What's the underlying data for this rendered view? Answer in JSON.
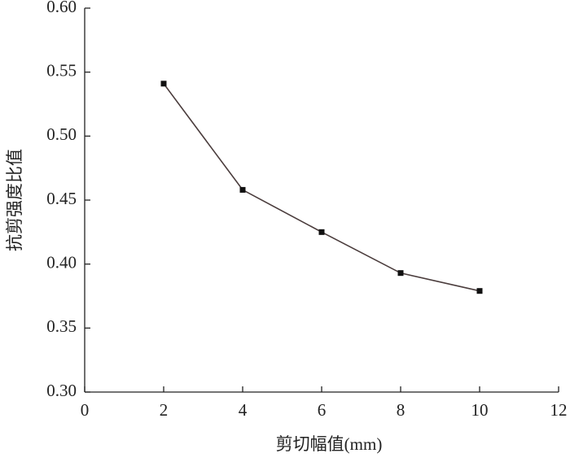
{
  "chart_data": {
    "type": "line",
    "x_label": "剪切幅值(mm)",
    "y_label": "抗剪强度比值",
    "x": [
      2,
      4,
      6,
      8,
      10
    ],
    "series": [
      {
        "color": "#4a3c3c",
        "values": [
          0.541,
          0.458,
          0.425,
          0.393,
          0.379
        ]
      }
    ],
    "xlim": [
      0,
      12
    ],
    "xticks": [
      0,
      2,
      4,
      6,
      8,
      10,
      12
    ],
    "ylim": [
      0.3,
      0.6
    ],
    "yticks": [
      {
        "value": 0.3,
        "label": "0.30"
      },
      {
        "value": 0.35,
        "label": "0.35"
      },
      {
        "value": 0.4,
        "label": "0.40"
      },
      {
        "value": 0.45,
        "label": "0.45"
      },
      {
        "value": 0.5,
        "label": "0.50"
      },
      {
        "value": 0.55,
        "label": "0.55"
      },
      {
        "value": 0.6,
        "label": "0.60"
      }
    ],
    "grid": false
  }
}
